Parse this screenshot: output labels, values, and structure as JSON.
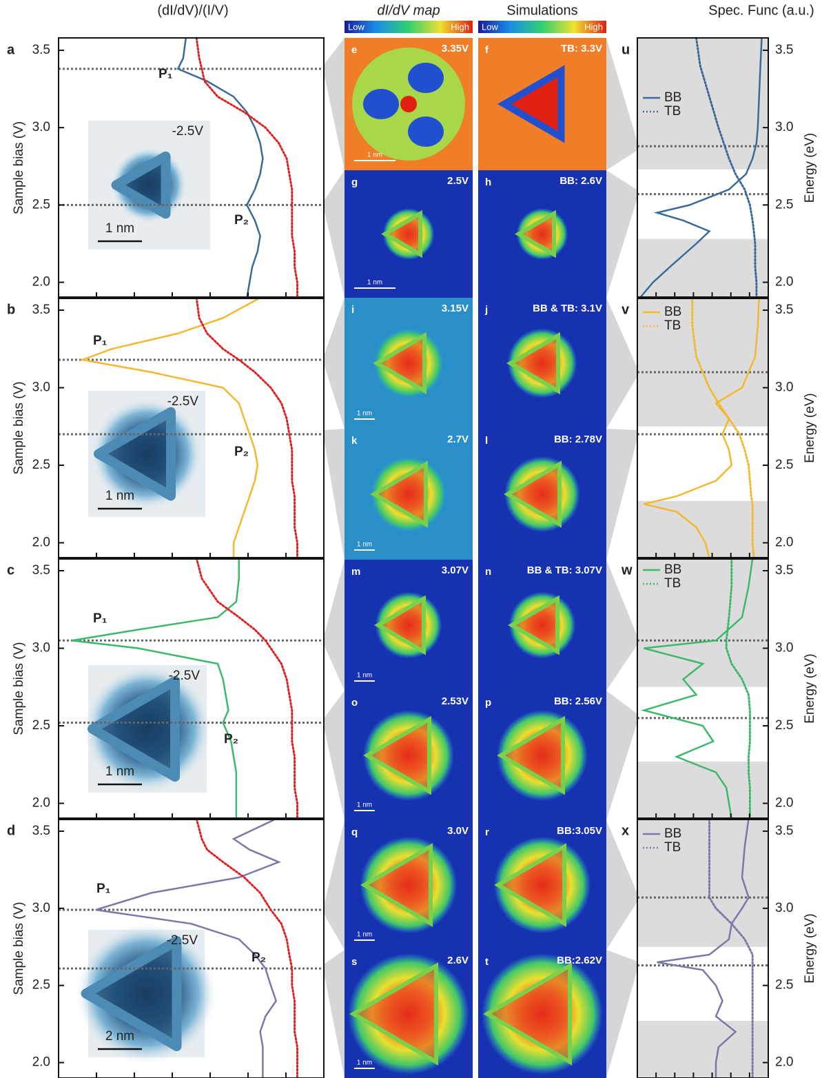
{
  "column_titles": [
    "(dI/dV)/(I/V)",
    "dI/dV map",
    "Simulations",
    "Spec. Func (a.u.)"
  ],
  "colorbars": [
    {
      "low": "Low",
      "high": "High"
    },
    {
      "low": "Low",
      "high": "High"
    }
  ],
  "maps": [
    {
      "label": "e",
      "text": "3.35V",
      "scale": "1 nm"
    },
    {
      "label": "f",
      "text": "TB: 3.3V"
    },
    {
      "label": "g",
      "text": "2.5V",
      "scale": "1 nm"
    },
    {
      "label": "h",
      "text": "BB: 2.6V"
    },
    {
      "label": "i",
      "text": "3.15V",
      "scale": "1 nm"
    },
    {
      "label": "j",
      "text": "BB & TB: 3.1V"
    },
    {
      "label": "k",
      "text": "2.7V",
      "scale": "1 nm"
    },
    {
      "label": "l",
      "text": "BB: 2.78V"
    },
    {
      "label": "m",
      "text": "3.07V",
      "scale": "1 nm"
    },
    {
      "label": "n",
      "text": "BB & TB: 3.07V"
    },
    {
      "label": "o",
      "text": "2.53V",
      "scale": "1 nm"
    },
    {
      "label": "p",
      "text": "BB: 2.56V"
    },
    {
      "label": "q",
      "text": "3.0V",
      "scale": "1 nm"
    },
    {
      "label": "r",
      "text": "BB:3.05V"
    },
    {
      "label": "s",
      "text": "2.6V",
      "scale": "1 nm"
    },
    {
      "label": "t",
      "text": "BB:2.62V"
    }
  ],
  "chart_data": [
    {
      "type": "line",
      "panel": "a",
      "ylabel": "Sample bias (V)",
      "xlim": [
        0,
        1
      ],
      "ylim": [
        1.9,
        3.58
      ],
      "yticks": [
        {
          "value": 2,
          "label": "2.0"
        },
        2.5,
        {
          "value": 3,
          "label": "3.0"
        },
        3.5
      ],
      "y": [
        3.58,
        3.45,
        3.38,
        3.3,
        3.2,
        3.1,
        3.0,
        2.9,
        2.8,
        2.7,
        2.6,
        2.5,
        2.4,
        2.3,
        2.2,
        2.1,
        2.0,
        1.9
      ],
      "series": [
        {
          "color": "#3a6a9a",
          "style": "solid",
          "values": [
            0.48,
            0.47,
            0.45,
            0.56,
            0.66,
            0.71,
            0.74,
            0.76,
            0.77,
            0.76,
            0.74,
            0.71,
            0.74,
            0.76,
            0.75,
            0.73,
            0.72,
            0.71
          ]
        },
        {
          "color": "#e02020",
          "style": "dotted",
          "values": [
            0.52,
            0.53,
            0.54,
            0.55,
            0.6,
            0.7,
            0.78,
            0.83,
            0.86,
            0.87,
            0.88,
            0.88,
            0.88,
            0.88,
            0.89,
            0.89,
            0.9,
            0.9
          ]
        }
      ],
      "hlines": [
        3.38,
        2.5
      ],
      "annotations": [
        "P₁",
        "P₂"
      ],
      "inset": {
        "label": "-2.5V",
        "scale": "1 nm"
      }
    },
    {
      "type": "line",
      "panel": "b",
      "ylabel": "Sample bias (V)",
      "xlim": [
        0,
        1
      ],
      "ylim": [
        1.9,
        3.58
      ],
      "yticks": [
        {
          "value": 2,
          "label": "2.0"
        },
        2.5,
        {
          "value": 3,
          "label": "3.0"
        },
        3.5
      ],
      "y": [
        3.58,
        3.45,
        3.35,
        3.25,
        3.18,
        3.1,
        3.0,
        2.9,
        2.8,
        2.7,
        2.6,
        2.5,
        2.4,
        2.3,
        2.2,
        2.1,
        2.0,
        1.9
      ],
      "series": [
        {
          "color": "#f2b830",
          "style": "solid",
          "values": [
            0.76,
            0.62,
            0.45,
            0.2,
            0.09,
            0.35,
            0.62,
            0.68,
            0.7,
            0.72,
            0.74,
            0.75,
            0.74,
            0.72,
            0.7,
            0.68,
            0.66,
            0.66
          ]
        },
        {
          "color": "#e02020",
          "style": "dotted",
          "values": [
            0.52,
            0.53,
            0.56,
            0.62,
            0.68,
            0.74,
            0.8,
            0.84,
            0.86,
            0.87,
            0.88,
            0.88,
            0.88,
            0.89,
            0.89,
            0.89,
            0.9,
            0.9
          ]
        }
      ],
      "hlines": [
        3.18,
        2.7
      ],
      "annotations": [
        "P₁",
        "P₂"
      ],
      "inset": {
        "label": "-2.5V",
        "scale": "1 nm"
      }
    },
    {
      "type": "line",
      "panel": "c",
      "ylabel": "Sample bias (V)",
      "xlim": [
        0,
        1
      ],
      "ylim": [
        1.9,
        3.58
      ],
      "yticks": [
        {
          "value": 2,
          "label": "2.0"
        },
        2.5,
        {
          "value": 3,
          "label": "3.0"
        },
        3.5
      ],
      "y": [
        3.58,
        3.45,
        3.3,
        3.2,
        3.12,
        3.05,
        3.0,
        2.9,
        2.8,
        2.7,
        2.6,
        2.52,
        2.4,
        2.3,
        2.2,
        2.1,
        2.0,
        1.9
      ],
      "series": [
        {
          "color": "#3db86a",
          "style": "solid",
          "values": [
            0.68,
            0.68,
            0.67,
            0.6,
            0.3,
            0.05,
            0.3,
            0.6,
            0.62,
            0.63,
            0.64,
            0.62,
            0.65,
            0.66,
            0.67,
            0.67,
            0.67,
            0.67
          ]
        },
        {
          "color": "#e02020",
          "style": "dotted",
          "values": [
            0.52,
            0.54,
            0.6,
            0.68,
            0.74,
            0.78,
            0.8,
            0.84,
            0.86,
            0.87,
            0.88,
            0.88,
            0.88,
            0.89,
            0.89,
            0.89,
            0.9,
            0.9
          ]
        }
      ],
      "hlines": [
        3.05,
        2.52
      ],
      "annotations": [
        "P₁",
        "P₂"
      ],
      "inset": {
        "label": "-2.5V",
        "scale": "1 nm"
      }
    },
    {
      "type": "line",
      "panel": "d",
      "ylabel": "Sample bias (V)",
      "xlim": [
        0,
        1
      ],
      "ylim": [
        1.9,
        3.58
      ],
      "yticks": [
        {
          "value": 2,
          "label": "2.0"
        },
        2.5,
        {
          "value": 3,
          "label": "3.0"
        },
        3.5
      ],
      "y": [
        3.58,
        3.45,
        3.38,
        3.3,
        3.2,
        3.1,
        2.99,
        2.9,
        2.8,
        2.7,
        2.61,
        2.5,
        2.4,
        2.3,
        2.2,
        2.1,
        2.0,
        1.9
      ],
      "series": [
        {
          "color": "#7a78a8",
          "style": "solid",
          "values": [
            0.82,
            0.66,
            0.72,
            0.83,
            0.68,
            0.35,
            0.14,
            0.5,
            0.68,
            0.74,
            0.78,
            0.8,
            0.82,
            0.78,
            0.76,
            0.77,
            0.77,
            0.77
          ]
        },
        {
          "color": "#e02020",
          "style": "dotted",
          "values": [
            0.52,
            0.54,
            0.56,
            0.62,
            0.7,
            0.76,
            0.8,
            0.84,
            0.86,
            0.87,
            0.88,
            0.88,
            0.89,
            0.89,
            0.89,
            0.9,
            0.9,
            0.9
          ]
        }
      ],
      "hlines": [
        2.99,
        2.61
      ],
      "annotations": [
        "P₁",
        "P₂"
      ],
      "inset": {
        "label": "-2.5V",
        "scale": "2 nm"
      }
    },
    {
      "type": "line",
      "panel": "u",
      "ylabel": "Energy (eV)",
      "xlim": [
        0,
        1
      ],
      "ylim": [
        1.9,
        3.58
      ],
      "yticks": [
        {
          "value": 2,
          "label": "2.0"
        },
        2.5,
        {
          "value": 3,
          "label": "3.0"
        },
        3.5
      ],
      "y": [
        3.58,
        3.4,
        3.2,
        3.0,
        2.9,
        2.8,
        2.7,
        2.6,
        2.5,
        2.45,
        2.4,
        2.33,
        2.25,
        2.1,
        2.0,
        1.9
      ],
      "series": [
        {
          "name": "BB",
          "color": "#3a6a9a",
          "style": "solid",
          "values": [
            0.95,
            0.94,
            0.93,
            0.92,
            0.91,
            0.88,
            0.83,
            0.7,
            0.4,
            0.15,
            0.35,
            0.55,
            0.45,
            0.25,
            0.12,
            0.02
          ]
        },
        {
          "name": "TB",
          "color": "#3a6a9a",
          "style": "dotted",
          "values": [
            0.45,
            0.48,
            0.55,
            0.62,
            0.66,
            0.7,
            0.75,
            0.82,
            0.86,
            0.87,
            0.88,
            0.89,
            0.9,
            0.9,
            0.91,
            0.91
          ]
        }
      ],
      "hlines": [
        2.88,
        2.57
      ],
      "shaded": [
        [
          2.73,
          3.58
        ],
        [
          1.9,
          2.28
        ]
      ]
    },
    {
      "type": "line",
      "panel": "v",
      "ylabel": "Energy (eV)",
      "xlim": [
        0,
        1
      ],
      "ylim": [
        1.9,
        3.58
      ],
      "yticks": [
        {
          "value": 2,
          "label": "2.0"
        },
        2.5,
        {
          "value": 3,
          "label": "3.0"
        },
        3.5
      ],
      "y": [
        3.58,
        3.4,
        3.2,
        3.0,
        2.9,
        2.8,
        2.7,
        2.6,
        2.5,
        2.4,
        2.3,
        2.25,
        2.2,
        2.1,
        2.0,
        1.9
      ],
      "series": [
        {
          "name": "BB",
          "color": "#f2b830",
          "style": "solid",
          "values": [
            0.93,
            0.92,
            0.9,
            0.8,
            0.6,
            0.7,
            0.65,
            0.7,
            0.72,
            0.6,
            0.3,
            0.05,
            0.3,
            0.45,
            0.52,
            0.55
          ]
        },
        {
          "name": "TB",
          "color": "#f2b830",
          "style": "dotted",
          "values": [
            0.42,
            0.42,
            0.45,
            0.55,
            0.62,
            0.7,
            0.78,
            0.82,
            0.85,
            0.86,
            0.87,
            0.88,
            0.88,
            0.88,
            0.88,
            0.89
          ]
        }
      ],
      "hlines": [
        3.1,
        2.7
      ],
      "shaded": [
        [
          2.75,
          3.58
        ],
        [
          1.9,
          2.27
        ]
      ]
    },
    {
      "type": "line",
      "panel": "w",
      "ylabel": "Energy (eV)",
      "xlim": [
        0,
        1
      ],
      "ylim": [
        1.9,
        3.58
      ],
      "yticks": [
        {
          "value": 2,
          "label": "2.0"
        },
        2.5,
        {
          "value": 3,
          "label": "3.0"
        },
        3.5
      ],
      "y": [
        3.58,
        3.4,
        3.2,
        3.05,
        3.0,
        2.9,
        2.8,
        2.7,
        2.6,
        2.5,
        2.4,
        2.3,
        2.2,
        2.1,
        2.0,
        1.9
      ],
      "series": [
        {
          "name": "BB",
          "color": "#3db86a",
          "style": "solid",
          "values": [
            0.88,
            0.85,
            0.8,
            0.6,
            0.05,
            0.5,
            0.35,
            0.45,
            0.05,
            0.5,
            0.58,
            0.3,
            0.6,
            0.68,
            0.7,
            0.72
          ]
        },
        {
          "name": "TB",
          "color": "#3db86a",
          "style": "dotted",
          "values": [
            0.72,
            0.72,
            0.7,
            0.68,
            0.68,
            0.72,
            0.8,
            0.85,
            0.86,
            0.86,
            0.86,
            0.85,
            0.85,
            0.86,
            0.86,
            0.86
          ]
        }
      ],
      "hlines": [
        3.05,
        2.55
      ],
      "shaded": [
        [
          2.75,
          3.58
        ],
        [
          1.9,
          2.27
        ]
      ]
    },
    {
      "type": "line",
      "panel": "x",
      "ylabel": "Energy (eV)",
      "xlim": [
        0,
        1
      ],
      "ylim": [
        1.9,
        3.58
      ],
      "yticks": [
        {
          "value": 2,
          "label": "2.0"
        },
        2.5,
        {
          "value": 3,
          "label": "3.0"
        },
        3.5
      ],
      "y": [
        3.58,
        3.4,
        3.2,
        3.07,
        3.0,
        2.9,
        2.8,
        2.7,
        2.65,
        2.6,
        2.5,
        2.4,
        2.3,
        2.2,
        2.1,
        2.0,
        1.9
      ],
      "series": [
        {
          "name": "BB",
          "color": "#7a78a8",
          "style": "solid",
          "values": [
            0.85,
            0.82,
            0.8,
            0.85,
            0.8,
            0.72,
            0.7,
            0.55,
            0.15,
            0.5,
            0.6,
            0.65,
            0.6,
            0.75,
            0.62,
            0.6,
            0.6
          ]
        },
        {
          "name": "TB",
          "color": "#7a78a8",
          "style": "dotted",
          "values": [
            0.55,
            0.55,
            0.55,
            0.55,
            0.6,
            0.72,
            0.82,
            0.88,
            0.88,
            0.88,
            0.88,
            0.88,
            0.88,
            0.88,
            0.88,
            0.88,
            0.88
          ]
        }
      ],
      "hlines": [
        3.07,
        2.63
      ],
      "shaded": [
        [
          2.75,
          3.58
        ],
        [
          1.9,
          2.27
        ]
      ]
    }
  ]
}
